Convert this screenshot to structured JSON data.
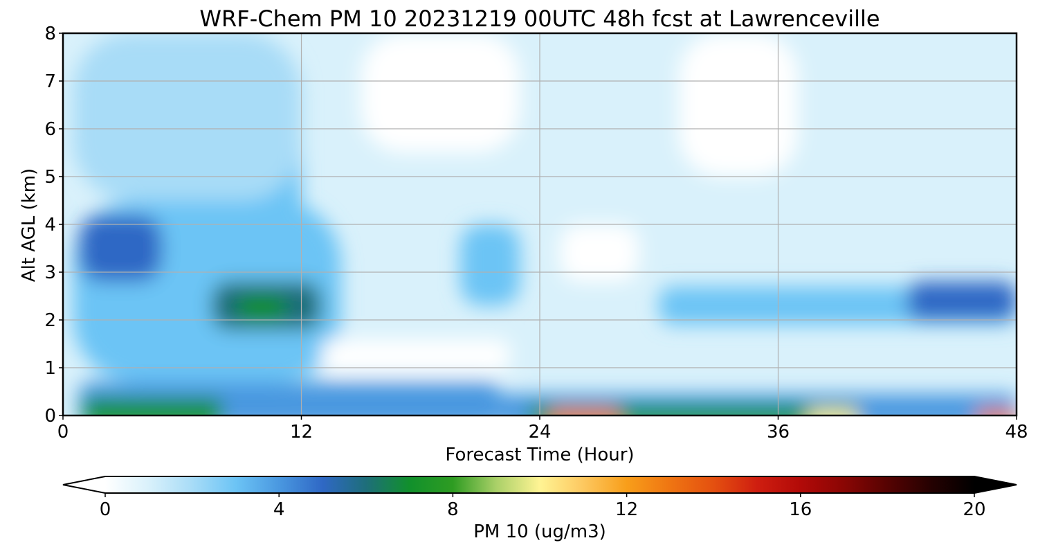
{
  "chart_data": {
    "type": "heatmap",
    "title": "WRF-Chem PM 10  20231219 00UTC 48h fcst at Lawrenceville",
    "xlabel": "Forecast Time (Hour)",
    "ylabel": "Alt AGL (km)",
    "x_ticks": [
      "0",
      "12",
      "24",
      "36",
      "48"
    ],
    "y_ticks": [
      "0",
      "1",
      "2",
      "3",
      "4",
      "5",
      "6",
      "7",
      "8"
    ],
    "xlim": [
      0,
      48
    ],
    "ylim": [
      0,
      8
    ],
    "grid": true,
    "colorbar": {
      "label": "PM 10  (ug/m3)",
      "ticks": [
        "0",
        "4",
        "8",
        "12",
        "16",
        "20"
      ],
      "range": [
        0,
        20
      ],
      "extend": "both",
      "placement": "bottom",
      "stops": [
        {
          "v": 0,
          "c": "#ffffff"
        },
        {
          "v": 1,
          "c": "#d9f1fb"
        },
        {
          "v": 2,
          "c": "#a8dcf7"
        },
        {
          "v": 3,
          "c": "#6cc4f5"
        },
        {
          "v": 4,
          "c": "#4a98e0"
        },
        {
          "v": 5,
          "c": "#2f68c5"
        },
        {
          "v": 6,
          "c": "#1e6e7a"
        },
        {
          "v": 7,
          "c": "#11902c"
        },
        {
          "v": 8,
          "c": "#2e9c22"
        },
        {
          "v": 9,
          "c": "#aad068"
        },
        {
          "v": 10,
          "c": "#fff494"
        },
        {
          "v": 11,
          "c": "#fdc860"
        },
        {
          "v": 12,
          "c": "#f89e1a"
        },
        {
          "v": 13,
          "c": "#ef7512"
        },
        {
          "v": 14,
          "c": "#e45010"
        },
        {
          "v": 15,
          "c": "#cf1e10"
        },
        {
          "v": 16,
          "c": "#b20a08"
        },
        {
          "v": 17,
          "c": "#8a0604"
        },
        {
          "v": 18,
          "c": "#560302"
        },
        {
          "v": 19,
          "c": "#250101"
        },
        {
          "v": 20,
          "c": "#000000"
        }
      ]
    },
    "base_field": 1.7,
    "features": [
      {
        "name": "low-level-band-0-22h",
        "x": [
          0.8,
          22
        ],
        "y": [
          0,
          0.7
        ],
        "value": 4.2
      },
      {
        "name": "surface-green-0-8h",
        "x": [
          1,
          8
        ],
        "y": [
          0,
          0.35
        ],
        "value": 7.2
      },
      {
        "name": "surface-layer-22-48h",
        "x": [
          22,
          48
        ],
        "y": [
          0,
          0.45
        ],
        "value": 4.8
      },
      {
        "name": "surface-peak-24-40h",
        "x": [
          23.5,
          40
        ],
        "y": [
          0,
          0.2
        ],
        "value": 7.6
      },
      {
        "name": "surface-max-25-28h",
        "x": [
          24.5,
          28
        ],
        "y": [
          0,
          0.12
        ],
        "value": 13.5
      },
      {
        "name": "surface-max-38-40h",
        "x": [
          37.5,
          40
        ],
        "y": [
          0,
          0.1
        ],
        "value": 10.5
      },
      {
        "name": "surface-max-46-48h",
        "x": [
          46,
          48
        ],
        "y": [
          0,
          0.1
        ],
        "value": 13.5
      },
      {
        "name": "column-0-14h",
        "x": [
          0.5,
          14
        ],
        "y": [
          0.7,
          4.5
        ],
        "value": 3.2
      },
      {
        "name": "blob-3h-3.5km",
        "x": [
          0.8,
          5
        ],
        "y": [
          2.8,
          4.2
        ],
        "value": 5.0
      },
      {
        "name": "blob-10h-2.2km",
        "x": [
          7.5,
          13
        ],
        "y": [
          1.8,
          2.8
        ],
        "value": 6.3
      },
      {
        "name": "core-10h-2.2km",
        "x": [
          8.8,
          11.2
        ],
        "y": [
          2.0,
          2.5
        ],
        "value": 7.3
      },
      {
        "name": "plume-10h-upper",
        "x": [
          8,
          12
        ],
        "y": [
          3,
          7.3
        ],
        "value": 3.4
      },
      {
        "name": "plume-21h-3km",
        "x": [
          20,
          23
        ],
        "y": [
          2.3,
          4
        ],
        "value": 3.0
      },
      {
        "name": "layer-30-48h-2.3km",
        "x": [
          30,
          48
        ],
        "y": [
          1.9,
          2.7
        ],
        "value": 3.3
      },
      {
        "name": "blob-45h-2.3km",
        "x": [
          42.5,
          48
        ],
        "y": [
          2,
          2.8
        ],
        "value": 5.3
      },
      {
        "name": "clean-pocket-14-22h",
        "x": [
          13,
          22.5
        ],
        "y": [
          0.9,
          1.6
        ],
        "value": 0.6
      },
      {
        "name": "clean-upper-15-23h",
        "x": [
          15,
          23
        ],
        "y": [
          5.5,
          8
        ],
        "value": 0.8
      },
      {
        "name": "clean-upper-31-37h",
        "x": [
          31,
          37
        ],
        "y": [
          5,
          8
        ],
        "value": 0.9
      },
      {
        "name": "clean-3km-26h",
        "x": [
          25,
          29
        ],
        "y": [
          2.8,
          4
        ],
        "value": 0.9
      },
      {
        "name": "upper-left-0-12h",
        "x": [
          0.5,
          12
        ],
        "y": [
          4.5,
          8
        ],
        "value": 2.2
      }
    ]
  }
}
